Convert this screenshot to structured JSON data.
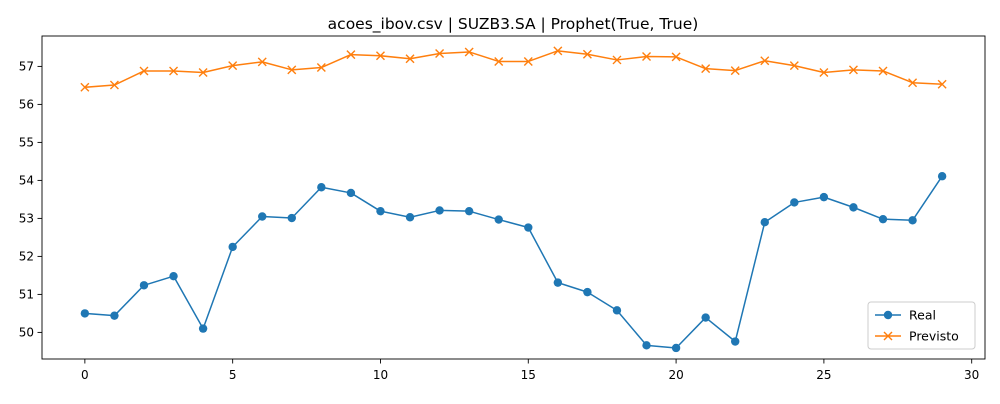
{
  "chart_data": {
    "type": "line",
    "title": "acoes_ibov.csv | SUZB3.SA | Prophet(True, True)",
    "xlabel": "",
    "ylabel": "",
    "xlim": [
      -1.45,
      30.45
    ],
    "ylim": [
      49.3,
      57.8
    ],
    "x_ticks": [
      0,
      5,
      10,
      15,
      20,
      25,
      30
    ],
    "y_ticks": [
      50,
      51,
      52,
      53,
      54,
      55,
      56,
      57
    ],
    "grid": false,
    "legend_position": "lower-right",
    "x": [
      0,
      1,
      2,
      3,
      4,
      5,
      6,
      7,
      8,
      9,
      10,
      11,
      12,
      13,
      14,
      15,
      16,
      17,
      18,
      19,
      20,
      21,
      22,
      23,
      24,
      25,
      26,
      27,
      28,
      29
    ],
    "series": [
      {
        "name": "Real",
        "color": "#1f77b4",
        "marker": "circle",
        "values": [
          50.5,
          50.44,
          51.24,
          51.48,
          50.1,
          52.25,
          53.05,
          53.01,
          53.82,
          53.67,
          53.19,
          53.03,
          53.21,
          53.19,
          52.97,
          52.76,
          51.31,
          51.06,
          50.58,
          49.66,
          49.59,
          50.39,
          49.76,
          52.9,
          53.42,
          53.56,
          53.29,
          52.98,
          52.95,
          54.11
        ]
      },
      {
        "name": "Previsto",
        "color": "#ff7f0e",
        "marker": "x",
        "values": [
          56.45,
          56.51,
          56.88,
          56.88,
          56.84,
          57.02,
          57.12,
          56.91,
          56.97,
          57.31,
          57.28,
          57.2,
          57.34,
          57.38,
          57.13,
          57.13,
          57.41,
          57.32,
          57.17,
          57.26,
          57.25,
          56.94,
          56.89,
          57.15,
          57.02,
          56.84,
          56.91,
          56.88,
          56.57,
          56.53
        ]
      }
    ]
  }
}
